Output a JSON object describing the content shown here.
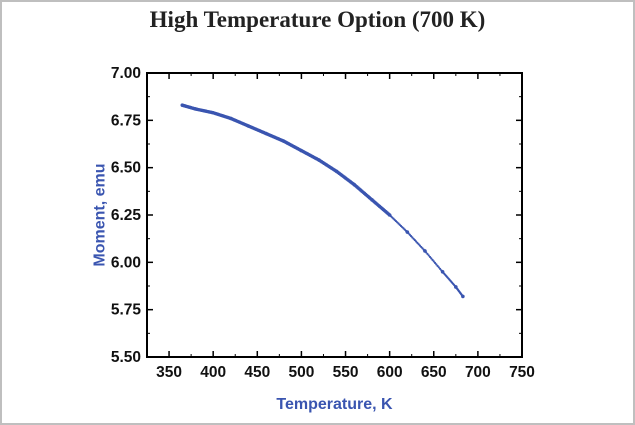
{
  "title": "High Temperature Option (700 K)",
  "chart_data": {
    "type": "scatter",
    "title": "High Temperature Option (700 K)",
    "xlabel": "Temperature, K",
    "ylabel": "Moment, emu",
    "xlim": [
      325,
      750
    ],
    "ylim": [
      5.5,
      7.0
    ],
    "x_ticks": [
      "350",
      "400",
      "450",
      "500",
      "550",
      "600",
      "650",
      "700",
      "750"
    ],
    "y_ticks": [
      "5.50",
      "5.75",
      "6.00",
      "6.25",
      "6.50",
      "6.75",
      "7.00"
    ],
    "grid": false,
    "series": [
      {
        "color": "#3a55b0",
        "x": [
          365,
          380,
          400,
          420,
          440,
          460,
          480,
          500,
          520,
          540,
          560,
          580,
          600,
          620,
          640,
          660,
          675,
          683
        ],
        "y": [
          6.83,
          6.81,
          6.79,
          6.76,
          6.72,
          6.68,
          6.64,
          6.59,
          6.54,
          6.48,
          6.41,
          6.33,
          6.25,
          6.16,
          6.06,
          5.95,
          5.87,
          5.82
        ]
      }
    ]
  }
}
